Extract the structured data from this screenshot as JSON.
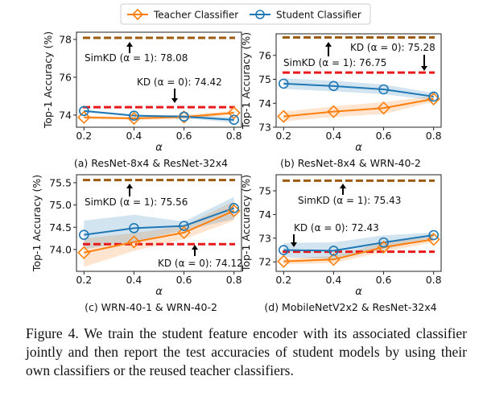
{
  "legend": {
    "placement": "top-center",
    "items": [
      {
        "label": "Teacher Classifier",
        "color": "#ff7f0e",
        "marker": "diamond"
      },
      {
        "label": "Student Classifier",
        "color": "#1f77b4",
        "marker": "circle"
      }
    ]
  },
  "caption": "Figure 4. We train the student feature encoder with its associated classifier jointly and then report the test accuracies of student models by using their own classifiers or the reused teacher classifiers.",
  "colors": {
    "teacher": "#ff7f0e",
    "student": "#1f77b4",
    "simkd_line": "#9c5b0f",
    "kd_line": "#e8191b"
  },
  "chart_data": [
    {
      "type": "line",
      "subtitle": "(a) ResNet-8x4 & ResNet-32x4",
      "xlabel": "α",
      "ylabel": "Top-1 Accuracy (%)",
      "x": [
        0.2,
        0.4,
        0.6,
        0.8
      ],
      "xticks": [
        "0.2",
        "0.4",
        "0.6",
        "0.8"
      ],
      "xlim": [
        0.17,
        0.83
      ],
      "yticks": [
        "74",
        "76",
        "78"
      ],
      "ylim": [
        73.36,
        78.38
      ],
      "series": [
        {
          "name": "Teacher Classifier",
          "values": [
            73.88,
            73.83,
            73.9,
            74.12
          ],
          "band": [
            0.08,
            0.08,
            0.12,
            0.1
          ]
        },
        {
          "name": "Student Classifier",
          "values": [
            74.22,
            73.97,
            73.92,
            73.75
          ],
          "band": [
            0.06,
            0.05,
            0.08,
            0.15
          ]
        }
      ],
      "hlines": [
        {
          "label": "SimKD (α = 1): 78.08",
          "value": 78.08
        },
        {
          "label": "KD (α = 0): 74.42",
          "value": 74.42
        }
      ]
    },
    {
      "type": "line",
      "subtitle": "(b) ResNet-8x4 & WRN-40-2",
      "xlabel": "α",
      "ylabel": "Top-1 Accuracy (%)",
      "x": [
        0.2,
        0.4,
        0.6,
        0.8
      ],
      "xticks": [
        "0.2",
        "0.4",
        "0.6",
        "0.8"
      ],
      "xlim": [
        0.17,
        0.83
      ],
      "yticks": [
        "73",
        "74",
        "75",
        "76"
      ],
      "ylim": [
        73.0,
        76.9
      ],
      "series": [
        {
          "name": "Teacher Classifier",
          "values": [
            73.45,
            73.65,
            73.8,
            74.18
          ],
          "band": [
            0.2,
            0.22,
            0.25,
            0.12
          ]
        },
        {
          "name": "Student Classifier",
          "values": [
            74.82,
            74.72,
            74.58,
            74.28
          ],
          "band": [
            0.22,
            0.22,
            0.2,
            0.15
          ]
        }
      ],
      "hlines": [
        {
          "label": "SimKD (α = 1): 76.75",
          "value": 76.75
        },
        {
          "label": "KD (α = 0): 75.28",
          "value": 75.28
        }
      ]
    },
    {
      "type": "line",
      "subtitle": "(c) WRN-40-1 & WRN-40-2",
      "xlabel": "α",
      "ylabel": "Top-1 Accuracy (%)",
      "x": [
        0.2,
        0.4,
        0.6,
        0.8
      ],
      "xticks": [
        "0.2",
        "0.4",
        "0.6",
        "0.8"
      ],
      "xlim": [
        0.17,
        0.83
      ],
      "yticks": [
        "74.0",
        "74.5",
        "75.0",
        "75.5"
      ],
      "ylim": [
        73.51,
        75.68
      ],
      "series": [
        {
          "name": "Teacher Classifier",
          "values": [
            73.93,
            74.17,
            74.38,
            74.87
          ],
          "band": [
            0.32,
            0.2,
            0.15,
            0.22
          ]
        },
        {
          "name": "Student Classifier",
          "values": [
            74.33,
            74.48,
            74.53,
            74.93
          ],
          "band": [
            0.32,
            0.3,
            0.1,
            0.25
          ]
        }
      ],
      "hlines": [
        {
          "label": "SimKD (α = 1): 75.56",
          "value": 75.56
        },
        {
          "label": "KD (α = 0): 74.12",
          "value": 74.12
        }
      ]
    },
    {
      "type": "line",
      "subtitle": "(d) MobileNetV2x2 & ResNet-32x4",
      "xlabel": "α",
      "ylabel": "Top-1 Accuracy (%)",
      "x": [
        0.2,
        0.4,
        0.6,
        0.8
      ],
      "xticks": [
        "0.2",
        "0.4",
        "0.6",
        "0.8"
      ],
      "xlim": [
        0.17,
        0.83
      ],
      "yticks": [
        "72",
        "73",
        "74",
        "75"
      ],
      "ylim": [
        71.6,
        75.68
      ],
      "series": [
        {
          "name": "Teacher Classifier",
          "values": [
            72.02,
            72.1,
            72.62,
            72.95
          ],
          "band": [
            0.12,
            0.15,
            0.2,
            0.12
          ]
        },
        {
          "name": "Student Classifier",
          "values": [
            72.5,
            72.47,
            72.82,
            73.13
          ],
          "band": [
            0.3,
            0.35,
            0.3,
            0.1
          ]
        }
      ],
      "hlines": [
        {
          "label": "SimKD (α = 1): 75.43",
          "value": 75.43
        },
        {
          "label": "KD (α = 0): 72.43",
          "value": 72.43
        }
      ]
    }
  ]
}
